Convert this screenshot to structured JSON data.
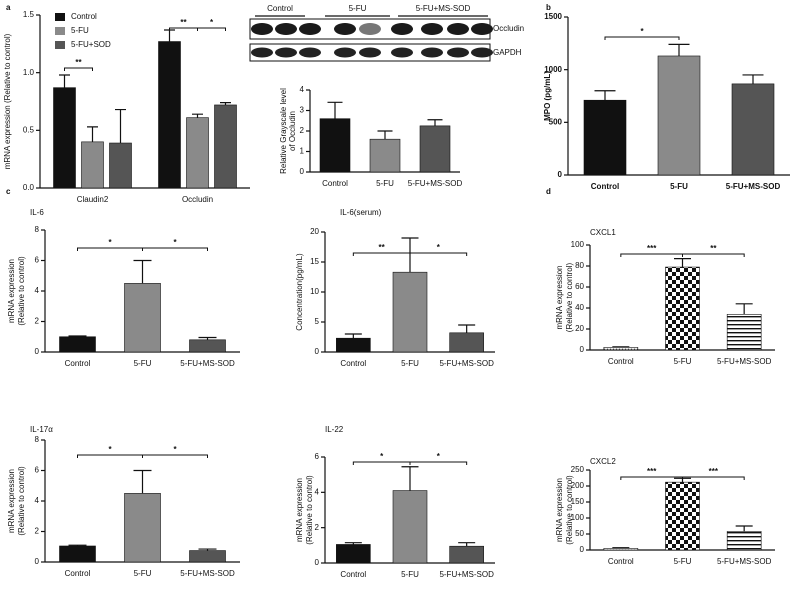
{
  "panels": [
    "a",
    "b",
    "c",
    "d"
  ],
  "blot": {
    "groups": [
      "Control",
      "5-FU",
      "5-FU+MS-SOD"
    ],
    "proteins": [
      "Occludin",
      "GAPDH"
    ]
  },
  "chart_data": [
    {
      "type": "bar",
      "ylabel": [
        "mRNA expression  (Relative to control)"
      ],
      "categories": [
        "Claudin2",
        "Occludin"
      ],
      "series": [
        {
          "name": "Control",
          "color": "#111111",
          "values": [
            0.87,
            1.27
          ],
          "errors": [
            0.11,
            0.1
          ]
        },
        {
          "name": "5-FU",
          "color": "#8a8a8a",
          "values": [
            0.4,
            0.61
          ],
          "errors": [
            0.13,
            0.03
          ]
        },
        {
          "name": "5-FU+SOD",
          "color": "#555555",
          "values": [
            0.39,
            0.72
          ],
          "errors": [
            0.29,
            0.02
          ]
        }
      ],
      "ylim": [
        0,
        1.5
      ],
      "yticks": [
        {
          "value": 0,
          "label": "0.0"
        },
        {
          "value": 0.5,
          "label": "0.5"
        },
        {
          "value": 1,
          "label": "1.0"
        },
        {
          "value": 1.5,
          "label": "1.5"
        }
      ],
      "annotations": [
        "**",
        "**",
        "*"
      ]
    },
    {
      "type": "bar",
      "ylabel": [
        "Relative  Grayscale level",
        "of Occludin"
      ],
      "categories": [
        "Control",
        "5-FU",
        "5-FU+MS-SOD"
      ],
      "values": [
        2.6,
        1.6,
        2.25
      ],
      "errors": [
        0.8,
        0.4,
        0.3
      ],
      "colors": [
        "#111111",
        "#8a8a8a",
        "#555555"
      ],
      "ylim": [
        0,
        4
      ],
      "yticks": [
        0,
        1,
        2,
        3,
        4
      ],
      "annotations": []
    },
    {
      "type": "bar",
      "ylabel": [
        "MPO (pg/mL)"
      ],
      "categories": [
        "Control",
        "5-FU",
        "5-FU+MS-SOD"
      ],
      "values": [
        710,
        1130,
        865
      ],
      "errors": [
        90,
        110,
        85
      ],
      "colors": [
        "#111111",
        "#8a8a8a",
        "#555555"
      ],
      "ylim": [
        0,
        1500
      ],
      "yticks": [
        0,
        500,
        1000,
        1500
      ],
      "annotations": [
        "*"
      ]
    },
    {
      "type": "bar",
      "title": "IL-6",
      "ylabel": [
        "mRNA expression",
        "(Relative to control)"
      ],
      "categories": [
        "Control",
        "5-FU",
        "5-FU+MS-SOD"
      ],
      "values": [
        1.0,
        4.5,
        0.8
      ],
      "errors": [
        0.05,
        1.5,
        0.15
      ],
      "colors": [
        "#111111",
        "#8a8a8a",
        "#555555"
      ],
      "ylim": [
        0,
        8
      ],
      "yticks": [
        0,
        2,
        4,
        6,
        8
      ],
      "annotations": [
        "*",
        "*"
      ]
    },
    {
      "type": "bar",
      "title": "IL-6(serum)",
      "ylabel": [
        "Concentration(pg/mL)"
      ],
      "categories": [
        "Control",
        "5-FU",
        "5-FU+MS-SOD"
      ],
      "values": [
        2.3,
        13.3,
        3.2
      ],
      "errors": [
        0.7,
        5.7,
        1.3
      ],
      "colors": [
        "#111111",
        "#8a8a8a",
        "#555555"
      ],
      "ylim": [
        0,
        20
      ],
      "yticks": [
        0,
        5,
        10,
        15,
        20
      ],
      "annotations": [
        "**",
        "*"
      ]
    },
    {
      "type": "bar",
      "title": "IL-17α",
      "ylabel": [
        "mRNA expression",
        "(Relative to control)"
      ],
      "categories": [
        "Control",
        "5-FU",
        "5-FU+MS-SOD"
      ],
      "values": [
        1.05,
        4.5,
        0.75
      ],
      "errors": [
        0.05,
        1.5,
        0.1
      ],
      "colors": [
        "#111111",
        "#8a8a8a",
        "#555555"
      ],
      "ylim": [
        0,
        8
      ],
      "yticks": [
        0,
        2,
        4,
        6,
        8
      ],
      "annotations": [
        "*",
        "*"
      ]
    },
    {
      "type": "bar",
      "title": "IL-22",
      "ylabel": [
        "mRNA expression",
        "(Relative to control)"
      ],
      "categories": [
        "Control",
        "5-FU",
        "5-FU+MS-SOD"
      ],
      "values": [
        1.05,
        4.1,
        0.95
      ],
      "errors": [
        0.1,
        1.35,
        0.2
      ],
      "colors": [
        "#111111",
        "#8a8a8a",
        "#555555"
      ],
      "ylim": [
        0,
        6
      ],
      "yticks": [
        0,
        2,
        4,
        6
      ],
      "annotations": [
        "*",
        "*"
      ]
    },
    {
      "type": "bar",
      "title": "CXCL1",
      "ylabel": [
        "mRNA expression",
        "(Relative to control)"
      ],
      "categories": [
        "Control",
        "5-FU",
        "5-FU+MS-SOD"
      ],
      "values": [
        2.5,
        79,
        34
      ],
      "errors": [
        0.5,
        8,
        10
      ],
      "patterns": [
        "dots",
        "checker",
        "hstripes"
      ],
      "ylim": [
        0,
        100
      ],
      "yticks": [
        0,
        20,
        40,
        60,
        80,
        100
      ],
      "annotations": [
        "***",
        "**"
      ]
    },
    {
      "type": "bar",
      "title": "CXCL2",
      "ylabel": [
        "mRNA expression",
        "(Relative to control)"
      ],
      "categories": [
        "Control",
        "5-FU",
        "5-FU+MS-SOD"
      ],
      "values": [
        5,
        212,
        58
      ],
      "errors": [
        2,
        12,
        17
      ],
      "patterns": [
        "dots",
        "checker",
        "hstripes"
      ],
      "ylim": [
        0,
        250
      ],
      "yticks": [
        0,
        50,
        100,
        150,
        200,
        250
      ],
      "annotations": [
        "***",
        "***"
      ]
    }
  ]
}
